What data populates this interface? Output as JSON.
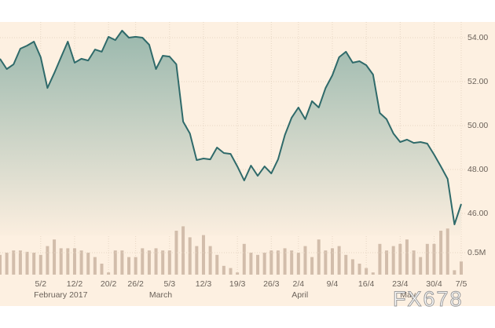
{
  "chart_data": {
    "type": "area",
    "categories": [
      null,
      null,
      null,
      null,
      null,
      null,
      "5/2",
      null,
      null,
      null,
      null,
      "12/2",
      null,
      null,
      null,
      null,
      "20/2",
      null,
      null,
      null,
      "26/2",
      null,
      null,
      null,
      null,
      "5/3",
      null,
      null,
      null,
      null,
      "12/3",
      null,
      null,
      null,
      null,
      "19/3",
      null,
      null,
      null,
      null,
      "26/3",
      null,
      null,
      null,
      "2/4",
      null,
      null,
      null,
      null,
      "9/4",
      null,
      null,
      null,
      null,
      "16/4",
      null,
      null,
      null,
      null,
      "23/4",
      null,
      null,
      null,
      null,
      "30/4",
      null,
      null,
      null,
      "7/5"
    ],
    "months": [
      "February 2017",
      "March",
      "April",
      "May"
    ],
    "series": [
      {
        "color": "#2f6a6a",
        "values": [
          53.04,
          52.57,
          52.79,
          53.5,
          53.64,
          53.82,
          53.11,
          51.71,
          52.39,
          53.11,
          53.82,
          52.86,
          53.04,
          52.96,
          53.46,
          53.36,
          54.04,
          53.89,
          54.32,
          54.0,
          54.04,
          54.0,
          53.68,
          52.57,
          53.18,
          53.14,
          52.79,
          50.18,
          49.64,
          48.43,
          48.5,
          48.46,
          49.0,
          48.75,
          48.71,
          48.14,
          47.5,
          48.18,
          47.71,
          48.14,
          47.82,
          48.46,
          49.57,
          50.36,
          50.82,
          50.29,
          51.11,
          50.82,
          51.71,
          52.29,
          53.11,
          53.36,
          52.86,
          52.93,
          52.75,
          52.32,
          50.57,
          50.29,
          49.64,
          49.25,
          49.36,
          49.21,
          49.25,
          49.18,
          48.68,
          48.14,
          47.57,
          45.5,
          46.43
        ]
      },
      {
        "type": "bar",
        "axis": "y2",
        "color": "#d2bdab",
        "values": [
          0.45,
          0.5,
          0.55,
          0.55,
          0.52,
          0.5,
          0.45,
          0.65,
          0.8,
          0.6,
          0.6,
          0.6,
          0.55,
          0.5,
          0.4,
          0.25,
          0.05,
          0.55,
          0.55,
          0.4,
          0.4,
          0.6,
          0.55,
          0.6,
          0.55,
          0.55,
          1.0,
          1.1,
          0.85,
          0.65,
          0.9,
          0.65,
          0.45,
          0.2,
          0.15,
          0.05,
          0.7,
          0.5,
          0.45,
          0.5,
          0.55,
          0.55,
          0.6,
          0.55,
          0.5,
          0.65,
          0.4,
          0.8,
          0.55,
          0.6,
          0.65,
          0.45,
          0.35,
          0.25,
          0.15,
          0.05,
          0.7,
          0.55,
          0.65,
          0.7,
          0.8,
          0.55,
          0.4,
          0.7,
          0.7,
          1.0,
          1.05,
          0.1,
          0.3
        ]
      }
    ],
    "ylim": [
      45,
      54.75
    ],
    "yticks": [
      {
        "value": 46,
        "label": "46.00"
      },
      {
        "value": 48,
        "label": "48.00"
      },
      {
        "value": 50,
        "label": "50.00"
      },
      {
        "value": 52,
        "label": "52.00"
      },
      {
        "value": 54,
        "label": "54.00"
      }
    ],
    "y2lim": [
      0,
      1.25
    ],
    "y2ticks": [
      {
        "value": 0.5,
        "label": "0.5M"
      }
    ],
    "grid": true,
    "watermark": "FX678"
  }
}
